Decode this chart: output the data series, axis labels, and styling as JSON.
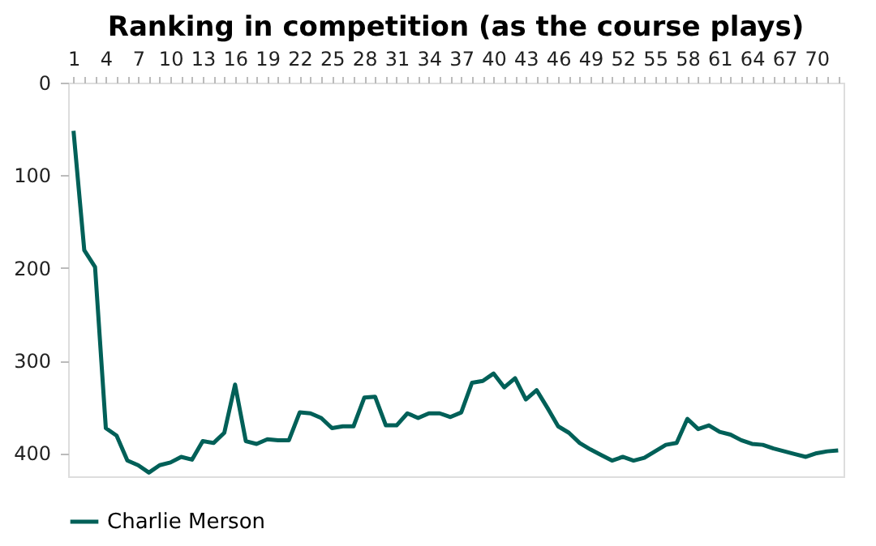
{
  "chart_data": {
    "type": "line",
    "title": "Ranking in competition (as the course plays)",
    "categories": [
      "1",
      null,
      null,
      "4",
      null,
      null,
      "7",
      null,
      null,
      "10",
      null,
      null,
      "13",
      null,
      null,
      "16",
      null,
      null,
      "19",
      null,
      null,
      "22",
      null,
      null,
      "25",
      null,
      null,
      "28",
      null,
      null,
      "31",
      null,
      null,
      "34",
      null,
      null,
      "37",
      null,
      null,
      "40",
      null,
      null,
      "43",
      null,
      null,
      "46",
      null,
      null,
      "49",
      null,
      null,
      "52",
      null,
      null,
      "55",
      null,
      null,
      "58",
      null,
      null,
      "61",
      null,
      null,
      "64",
      null,
      null,
      "67",
      null,
      null,
      "70",
      null,
      null
    ],
    "series": [
      {
        "name": "Charlie Merson",
        "color": "#006058",
        "values": [
          52,
          181,
          199,
          373,
          381,
          408,
          413,
          421,
          413,
          410,
          404,
          407,
          387,
          389,
          378,
          326,
          387,
          390,
          385,
          386,
          386,
          356,
          357,
          362,
          373,
          371,
          371,
          340,
          339,
          370,
          370,
          357,
          362,
          357,
          357,
          361,
          356,
          324,
          322,
          314,
          329,
          319,
          342,
          332,
          351,
          371,
          378,
          389,
          396,
          402,
          408,
          404,
          408,
          405,
          398,
          391,
          389,
          363,
          374,
          370,
          377,
          380,
          386,
          390,
          391,
          395,
          398,
          401,
          404,
          400,
          398,
          397
        ]
      }
    ],
    "ylim": [
      425,
      0
    ],
    "yticks": [
      0,
      100,
      200,
      300,
      400
    ],
    "grid": false,
    "legend": "bottom",
    "marker": "none",
    "line_style": "solid"
  }
}
